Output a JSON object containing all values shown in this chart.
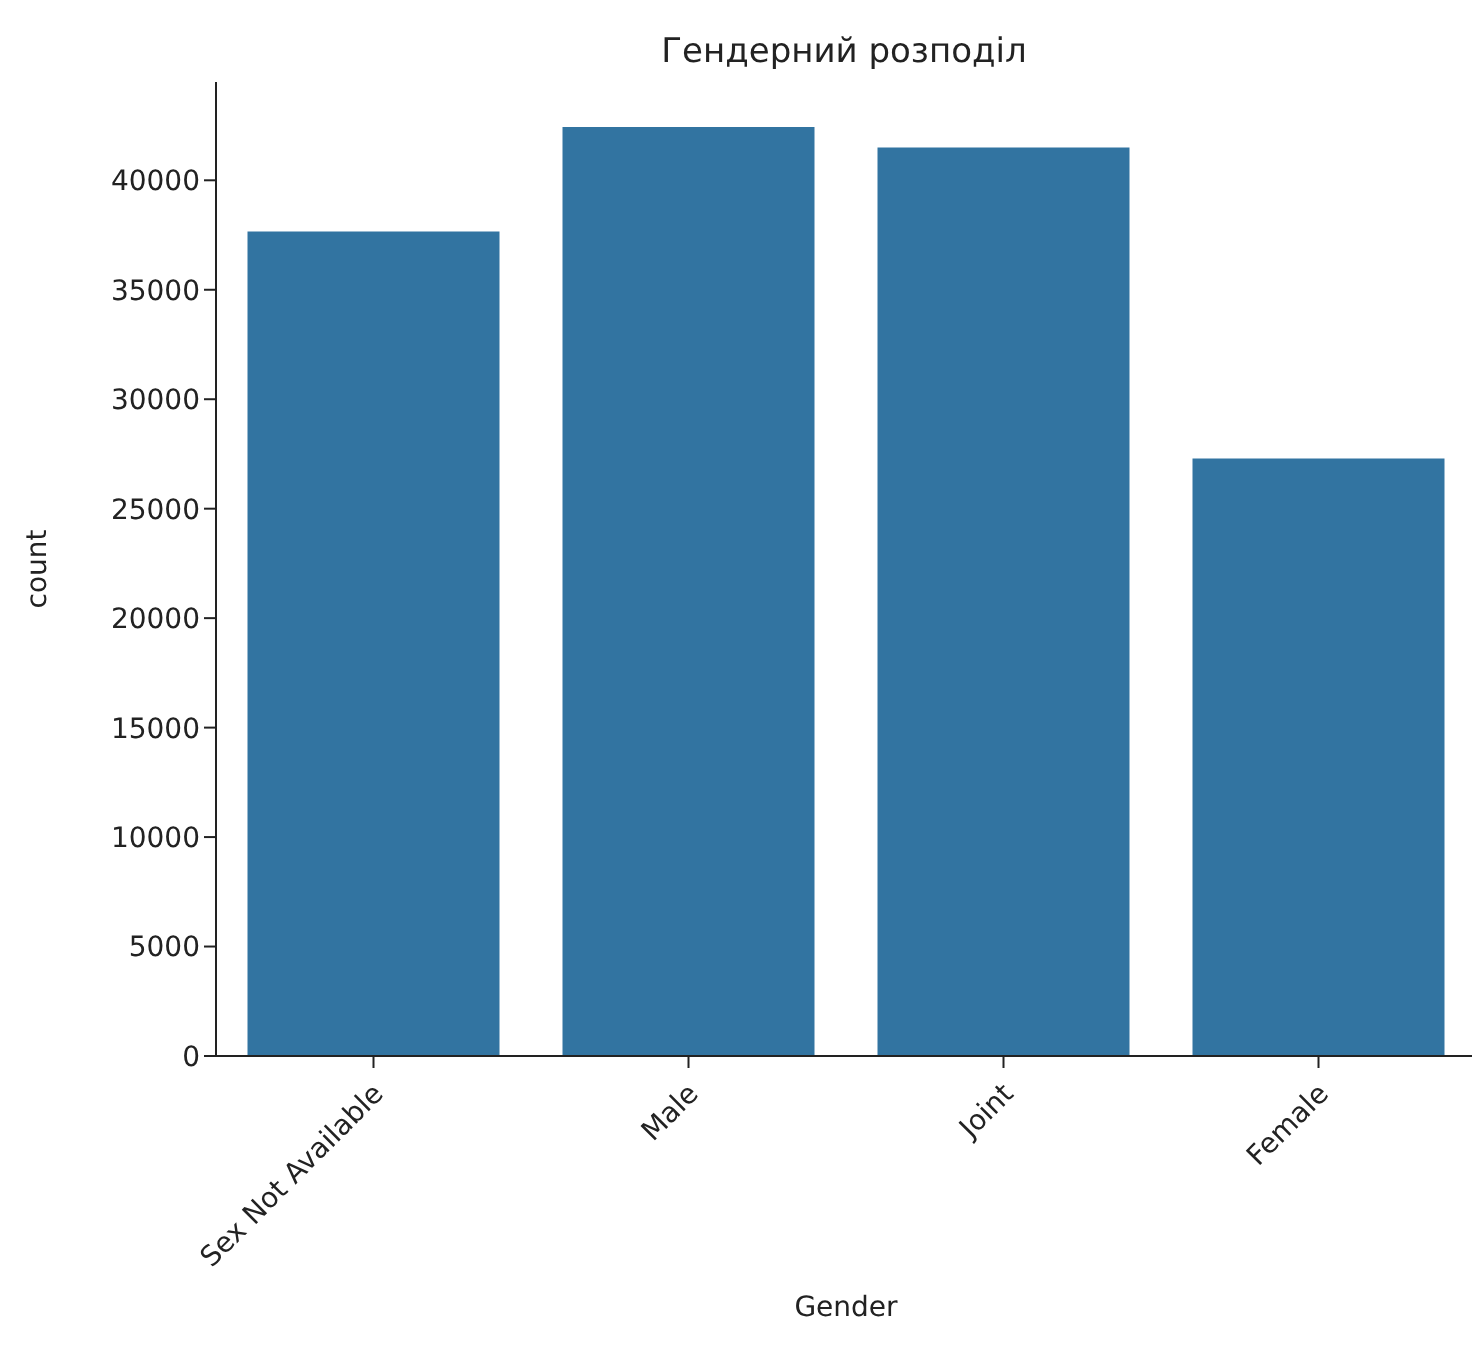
{
  "chart_data": {
    "type": "bar",
    "title": "Гендерний розподіл",
    "xlabel": "Gender",
    "ylabel": "count",
    "categories": [
      "Sex Not Available",
      "Male",
      "Joint",
      "Female"
    ],
    "values": [
      37660,
      42430,
      41500,
      27290
    ],
    "color": "#3274a1",
    "ylim": [
      0,
      44490
    ],
    "yticks": [
      0,
      5000,
      10000,
      15000,
      20000,
      25000,
      30000,
      35000,
      40000
    ],
    "grid": false
  }
}
